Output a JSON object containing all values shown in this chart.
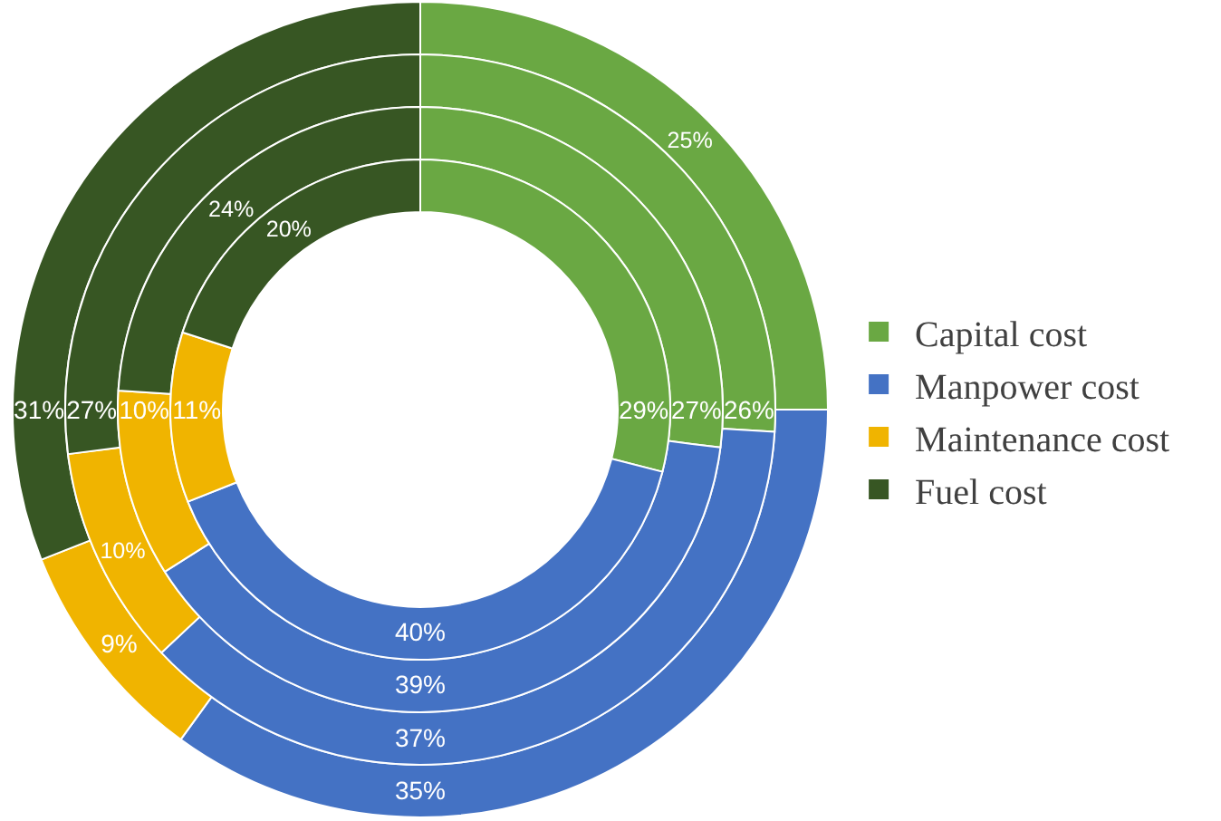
{
  "chart_data": {
    "type": "donut",
    "categories": [
      "Capital cost",
      "Manpower cost",
      "Maintenance cost",
      "Fuel cost"
    ],
    "colors": [
      "#6aa843",
      "#4472c4",
      "#f0b400",
      "#375623"
    ],
    "legend": "right",
    "series": [
      {
        "values": [
          25,
          35,
          9,
          31
        ],
        "value_labels": [
          "25%",
          "35%",
          "9%",
          "31%"
        ]
      },
      {
        "values": [
          26,
          37,
          10,
          27
        ],
        "value_labels": [
          "26%",
          "37%",
          "10%",
          "27%"
        ]
      },
      {
        "values": [
          27,
          39,
          10,
          24
        ],
        "value_labels": [
          "27%",
          "39%",
          "10%",
          "24%"
        ]
      },
      {
        "values": [
          29,
          40,
          11,
          20
        ],
        "value_labels": [
          "29%",
          "40%",
          "11%",
          "20%"
        ]
      }
    ]
  }
}
